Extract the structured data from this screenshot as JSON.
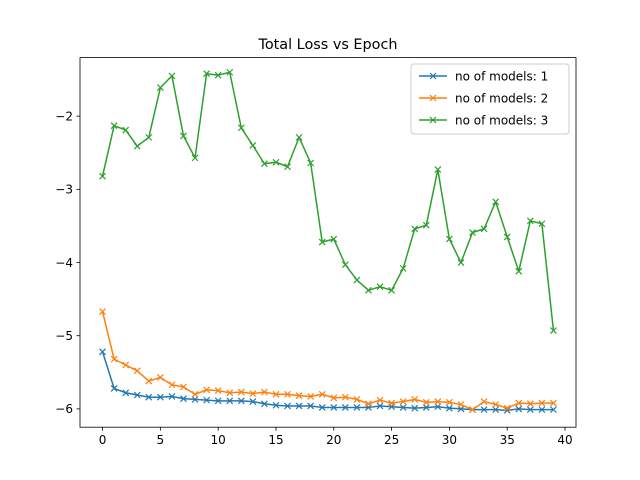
{
  "chart_data": {
    "type": "line",
    "title": "Total Loss vs Epoch",
    "xlabel": "",
    "ylabel": "",
    "xlim": [
      -1.95,
      40.95
    ],
    "ylim": [
      -6.25,
      -1.2
    ],
    "xticks": [
      0,
      5,
      10,
      15,
      20,
      25,
      30,
      35,
      40
    ],
    "yticks": [
      -6,
      -5,
      -4,
      -3,
      -2
    ],
    "ytick_labels": [
      "−6",
      "−5",
      "−4",
      "−3",
      "−2"
    ],
    "grid": false,
    "legend_position": "top-right",
    "marker": "x",
    "x": [
      0,
      1,
      2,
      3,
      4,
      5,
      6,
      7,
      8,
      9,
      10,
      11,
      12,
      13,
      14,
      15,
      16,
      17,
      18,
      19,
      20,
      21,
      22,
      23,
      24,
      25,
      26,
      27,
      28,
      29,
      30,
      31,
      32,
      33,
      34,
      35,
      36,
      37,
      38,
      39
    ],
    "series": [
      {
        "name": "no of models: 1",
        "color": "#1f77b4",
        "values": [
          -5.22,
          -5.72,
          -5.78,
          -5.81,
          -5.84,
          -5.84,
          -5.83,
          -5.86,
          -5.87,
          -5.88,
          -5.89,
          -5.89,
          -5.89,
          -5.9,
          -5.93,
          -5.95,
          -5.96,
          -5.96,
          -5.96,
          -5.98,
          -5.98,
          -5.98,
          -5.98,
          -5.98,
          -5.96,
          -5.97,
          -5.98,
          -5.99,
          -5.98,
          -5.97,
          -5.99,
          -6.0,
          -6.01,
          -6.01,
          -6.01,
          -6.02,
          -6.0,
          -6.01,
          -6.01,
          -6.01
        ]
      },
      {
        "name": "no of models: 2",
        "color": "#ff7f0e",
        "values": [
          -4.67,
          -5.32,
          -5.4,
          -5.48,
          -5.62,
          -5.57,
          -5.67,
          -5.7,
          -5.8,
          -5.74,
          -5.75,
          -5.78,
          -5.77,
          -5.79,
          -5.77,
          -5.8,
          -5.8,
          -5.82,
          -5.83,
          -5.8,
          -5.85,
          -5.84,
          -5.87,
          -5.93,
          -5.88,
          -5.92,
          -5.9,
          -5.87,
          -5.91,
          -5.9,
          -5.91,
          -5.94,
          -6.01,
          -5.9,
          -5.94,
          -5.99,
          -5.92,
          -5.93,
          -5.92,
          -5.92
        ]
      },
      {
        "name": "no of models: 3",
        "color": "#2ca02c",
        "values": [
          -2.82,
          -2.13,
          -2.19,
          -2.41,
          -2.29,
          -1.61,
          -1.45,
          -2.27,
          -2.57,
          -1.42,
          -1.44,
          -1.4,
          -2.16,
          -2.4,
          -2.65,
          -2.63,
          -2.69,
          -2.29,
          -2.64,
          -3.72,
          -3.68,
          -4.03,
          -4.24,
          -4.38,
          -4.33,
          -4.38,
          -4.08,
          -3.54,
          -3.49,
          -2.73,
          -3.68,
          -4.0,
          -3.59,
          -3.54,
          -3.17,
          -3.65,
          -4.12,
          -3.43,
          -3.47,
          -4.93
        ]
      }
    ]
  }
}
